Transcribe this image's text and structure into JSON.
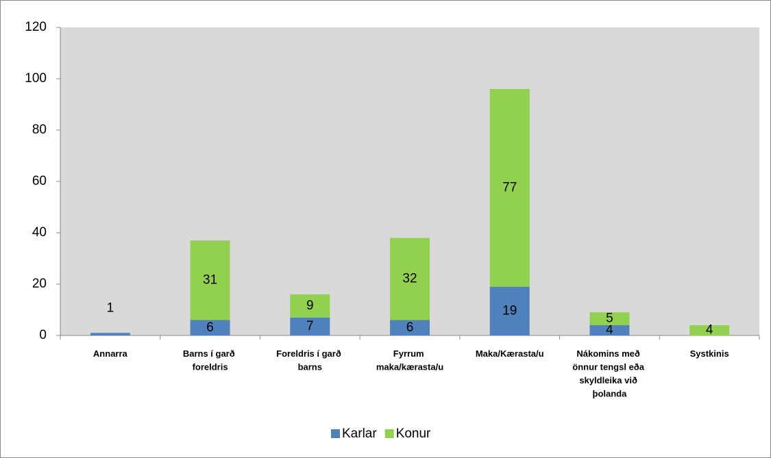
{
  "chart_data": {
    "type": "bar",
    "stacked": true,
    "categories": [
      "Annarra",
      "Barns í garð foreldris",
      "Foreldris í garð barns",
      "Fyrrum maka/kærasta/u",
      "Maka/Kærasta/u",
      "Nákomins með önnur tengsl eða skyldleika við þolanda",
      "Systkinis"
    ],
    "series": [
      {
        "name": "Karlar",
        "color": "#4f81bd",
        "values": [
          1,
          6,
          7,
          6,
          19,
          4,
          null
        ]
      },
      {
        "name": "Konur",
        "color": "#92d050",
        "values": [
          null,
          31,
          9,
          32,
          77,
          5,
          4
        ]
      }
    ],
    "ylim": [
      0,
      120
    ],
    "yticks": [
      0,
      20,
      40,
      60,
      80,
      100,
      120
    ],
    "grid": false,
    "legend": "bottom"
  }
}
